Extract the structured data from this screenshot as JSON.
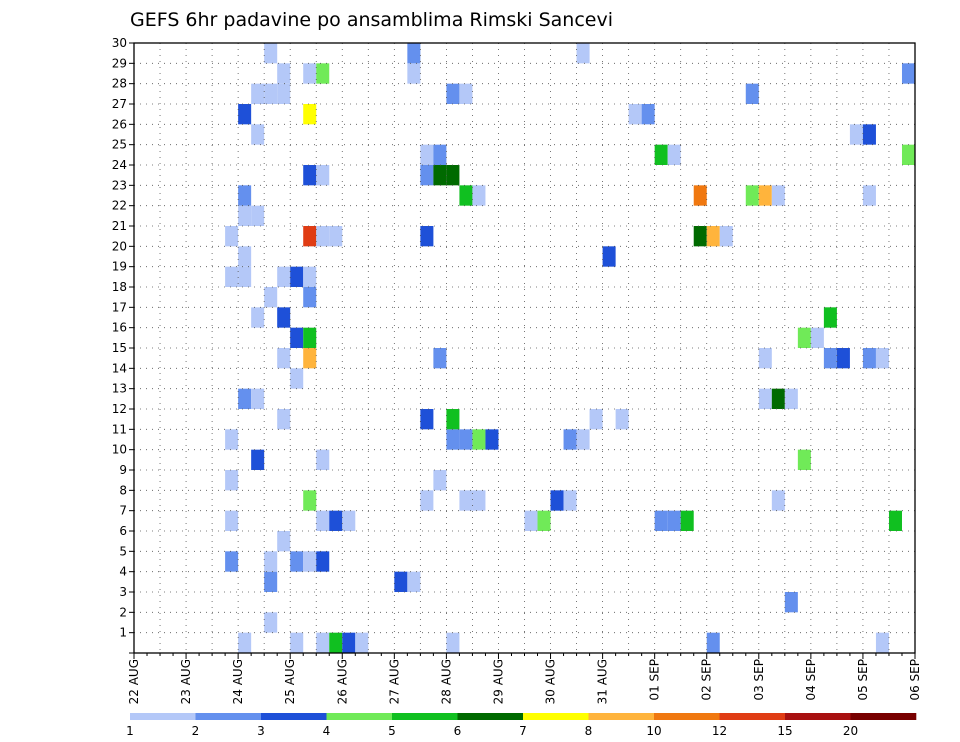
{
  "chart_data": {
    "type": "heatmap",
    "title": "GEFS 6hr padavine po ansamblima Rimski Sancevi",
    "xlabel": "",
    "ylabel": "",
    "x_ticks": [
      "22 AUG",
      "23 AUG",
      "24 AUG",
      "25 AUG",
      "26 AUG",
      "27 AUG",
      "28 AUG",
      "29 AUG",
      "30 AUG",
      "31 AUG",
      "01 SEP",
      "02 SEP",
      "03 SEP",
      "04 SEP",
      "05 SEP",
      "06 SEP"
    ],
    "y_ticks": [
      1,
      2,
      3,
      4,
      5,
      6,
      7,
      8,
      9,
      10,
      11,
      12,
      13,
      14,
      15,
      16,
      17,
      18,
      19,
      20,
      21,
      22,
      23,
      24,
      25,
      26,
      27,
      28,
      29,
      30
    ],
    "x_range_days": [
      0,
      15
    ],
    "y_range": [
      0,
      30
    ],
    "grid": "dotted",
    "colorbar": {
      "labels": [
        "1",
        "2",
        "3",
        "4",
        "5",
        "6",
        "7",
        "8",
        "10",
        "12",
        "15",
        "20"
      ],
      "colors": [
        "#b4c8f8",
        "#6490ee",
        "#1e50d8",
        "#70ea58",
        "#10c020",
        "#006a00",
        "#ffff00",
        "#ffb43c",
        "#f07810",
        "#e03c14",
        "#a81010",
        "#780000"
      ]
    },
    "cells": [
      {
        "d": 2.0,
        "m": 0,
        "v": 1.5
      },
      {
        "d": 3.0,
        "m": 0,
        "v": 1.5
      },
      {
        "d": 3.5,
        "m": 0,
        "v": 1.5
      },
      {
        "d": 3.75,
        "m": 0,
        "v": 5.5
      },
      {
        "d": 4.0,
        "m": 0,
        "v": 3.5
      },
      {
        "d": 4.25,
        "m": 0,
        "v": 1.5
      },
      {
        "d": 6.0,
        "m": 0,
        "v": 1.5
      },
      {
        "d": 11.0,
        "m": 0,
        "v": 2.5
      },
      {
        "d": 14.25,
        "m": 0,
        "v": 1.5
      },
      {
        "d": 2.5,
        "m": 1,
        "v": 1.5
      },
      {
        "d": 12.5,
        "m": 2,
        "v": 2.5
      },
      {
        "d": 2.5,
        "m": 3,
        "v": 2.5
      },
      {
        "d": 5.0,
        "m": 3,
        "v": 3.5
      },
      {
        "d": 5.25,
        "m": 3,
        "v": 1.5
      },
      {
        "d": 1.75,
        "m": 4,
        "v": 2.5
      },
      {
        "d": 2.5,
        "m": 4,
        "v": 1.5
      },
      {
        "d": 3.0,
        "m": 4,
        "v": 2.5
      },
      {
        "d": 3.25,
        "m": 4,
        "v": 1.5
      },
      {
        "d": 3.5,
        "m": 4,
        "v": 3.5
      },
      {
        "d": 2.75,
        "m": 5,
        "v": 1.5
      },
      {
        "d": 1.75,
        "m": 6,
        "v": 1.5
      },
      {
        "d": 3.5,
        "m": 6,
        "v": 1.5
      },
      {
        "d": 3.75,
        "m": 6,
        "v": 3.5
      },
      {
        "d": 4.0,
        "m": 6,
        "v": 1.5
      },
      {
        "d": 7.5,
        "m": 6,
        "v": 1.5
      },
      {
        "d": 7.75,
        "m": 6,
        "v": 4.5
      },
      {
        "d": 10.0,
        "m": 6,
        "v": 2.5
      },
      {
        "d": 10.25,
        "m": 6,
        "v": 2.5
      },
      {
        "d": 10.5,
        "m": 6,
        "v": 5.5
      },
      {
        "d": 14.5,
        "m": 6,
        "v": 5.5
      },
      {
        "d": 3.25,
        "m": 7,
        "v": 4.5
      },
      {
        "d": 5.5,
        "m": 7,
        "v": 1.5
      },
      {
        "d": 6.25,
        "m": 7,
        "v": 1.5
      },
      {
        "d": 6.5,
        "m": 7,
        "v": 1.5
      },
      {
        "d": 8.0,
        "m": 7,
        "v": 3.5
      },
      {
        "d": 8.25,
        "m": 7,
        "v": 1.5
      },
      {
        "d": 12.25,
        "m": 7,
        "v": 1.5
      },
      {
        "d": 1.75,
        "m": 8,
        "v": 1.5
      },
      {
        "d": 5.75,
        "m": 8,
        "v": 1.5
      },
      {
        "d": 2.25,
        "m": 9,
        "v": 3.5
      },
      {
        "d": 3.5,
        "m": 9,
        "v": 1.5
      },
      {
        "d": 12.75,
        "m": 9,
        "v": 4.5
      },
      {
        "d": 1.75,
        "m": 10,
        "v": 1.5
      },
      {
        "d": 6.0,
        "m": 10,
        "v": 2.5
      },
      {
        "d": 6.25,
        "m": 10,
        "v": 2.5
      },
      {
        "d": 6.5,
        "m": 10,
        "v": 4.5
      },
      {
        "d": 6.75,
        "m": 10,
        "v": 3.5
      },
      {
        "d": 8.25,
        "m": 10,
        "v": 2.5
      },
      {
        "d": 8.5,
        "m": 10,
        "v": 1.5
      },
      {
        "d": 2.75,
        "m": 11,
        "v": 1.5
      },
      {
        "d": 5.5,
        "m": 11,
        "v": 3.5
      },
      {
        "d": 6.0,
        "m": 11,
        "v": 5.5
      },
      {
        "d": 8.75,
        "m": 11,
        "v": 1.5
      },
      {
        "d": 9.25,
        "m": 11,
        "v": 1.5
      },
      {
        "d": 2.0,
        "m": 12,
        "v": 2.5
      },
      {
        "d": 2.25,
        "m": 12,
        "v": 1.5
      },
      {
        "d": 12.0,
        "m": 12,
        "v": 1.5
      },
      {
        "d": 12.25,
        "m": 12,
        "v": 6.5
      },
      {
        "d": 12.5,
        "m": 12,
        "v": 1.5
      },
      {
        "d": 3.0,
        "m": 13,
        "v": 1.5
      },
      {
        "d": 2.75,
        "m": 14,
        "v": 1.5
      },
      {
        "d": 3.25,
        "m": 14,
        "v": 9.0
      },
      {
        "d": 5.75,
        "m": 14,
        "v": 2.5
      },
      {
        "d": 12.0,
        "m": 14,
        "v": 1.5
      },
      {
        "d": 13.25,
        "m": 14,
        "v": 2.5
      },
      {
        "d": 13.5,
        "m": 14,
        "v": 3.5
      },
      {
        "d": 14.0,
        "m": 14,
        "v": 2.5
      },
      {
        "d": 14.25,
        "m": 14,
        "v": 1.5
      },
      {
        "d": 3.0,
        "m": 15,
        "v": 3.5
      },
      {
        "d": 3.25,
        "m": 15,
        "v": 5.5
      },
      {
        "d": 12.75,
        "m": 15,
        "v": 4.5
      },
      {
        "d": 13.0,
        "m": 15,
        "v": 1.5
      },
      {
        "d": 2.25,
        "m": 16,
        "v": 1.5
      },
      {
        "d": 2.75,
        "m": 16,
        "v": 3.5
      },
      {
        "d": 13.25,
        "m": 16,
        "v": 5.5
      },
      {
        "d": 2.5,
        "m": 17,
        "v": 1.5
      },
      {
        "d": 3.25,
        "m": 17,
        "v": 2.5
      },
      {
        "d": 1.75,
        "m": 18,
        "v": 1.5
      },
      {
        "d": 2.0,
        "m": 18,
        "v": 1.5
      },
      {
        "d": 2.75,
        "m": 18,
        "v": 1.5
      },
      {
        "d": 3.0,
        "m": 18,
        "v": 3.5
      },
      {
        "d": 3.25,
        "m": 18,
        "v": 1.5
      },
      {
        "d": 2.0,
        "m": 19,
        "v": 1.5
      },
      {
        "d": 9.0,
        "m": 19,
        "v": 3.5
      },
      {
        "d": 1.75,
        "m": 20,
        "v": 1.5
      },
      {
        "d": 3.25,
        "m": 20,
        "v": 14.0
      },
      {
        "d": 3.5,
        "m": 20,
        "v": 1.5
      },
      {
        "d": 3.75,
        "m": 20,
        "v": 1.5
      },
      {
        "d": 5.5,
        "m": 20,
        "v": 3.5
      },
      {
        "d": 10.75,
        "m": 20,
        "v": 6.5
      },
      {
        "d": 11.0,
        "m": 20,
        "v": 9.0
      },
      {
        "d": 11.25,
        "m": 20,
        "v": 1.5
      },
      {
        "d": 2.0,
        "m": 21,
        "v": 1.5
      },
      {
        "d": 2.25,
        "m": 21,
        "v": 1.5
      },
      {
        "d": 2.0,
        "m": 22,
        "v": 2.5
      },
      {
        "d": 6.25,
        "m": 22,
        "v": 5.5
      },
      {
        "d": 6.5,
        "m": 22,
        "v": 1.5
      },
      {
        "d": 10.75,
        "m": 22,
        "v": 11.0
      },
      {
        "d": 11.75,
        "m": 22,
        "v": 4.5
      },
      {
        "d": 12.0,
        "m": 22,
        "v": 9.0
      },
      {
        "d": 12.25,
        "m": 22,
        "v": 1.5
      },
      {
        "d": 14.0,
        "m": 22,
        "v": 1.5
      },
      {
        "d": 3.25,
        "m": 23,
        "v": 3.5
      },
      {
        "d": 3.5,
        "m": 23,
        "v": 1.5
      },
      {
        "d": 5.5,
        "m": 23,
        "v": 2.5
      },
      {
        "d": 5.75,
        "m": 23,
        "v": 6.5
      },
      {
        "d": 6.0,
        "m": 23,
        "v": 6.5
      },
      {
        "d": 5.5,
        "m": 24,
        "v": 1.5
      },
      {
        "d": 5.75,
        "m": 24,
        "v": 2.5
      },
      {
        "d": 10.0,
        "m": 24,
        "v": 5.5
      },
      {
        "d": 10.25,
        "m": 24,
        "v": 1.5
      },
      {
        "d": 14.75,
        "m": 24,
        "v": 4.5
      },
      {
        "d": 2.25,
        "m": 25,
        "v": 1.5
      },
      {
        "d": 13.75,
        "m": 25,
        "v": 1.5
      },
      {
        "d": 14.0,
        "m": 25,
        "v": 3.5
      },
      {
        "d": 2.0,
        "m": 26,
        "v": 3.5
      },
      {
        "d": 3.25,
        "m": 26,
        "v": 7.5
      },
      {
        "d": 9.5,
        "m": 26,
        "v": 1.5
      },
      {
        "d": 9.75,
        "m": 26,
        "v": 2.5
      },
      {
        "d": 2.25,
        "m": 27,
        "v": 1.5
      },
      {
        "d": 2.5,
        "m": 27,
        "v": 1.5
      },
      {
        "d": 2.75,
        "m": 27,
        "v": 1.5
      },
      {
        "d": 6.0,
        "m": 27,
        "v": 2.5
      },
      {
        "d": 6.25,
        "m": 27,
        "v": 1.5
      },
      {
        "d": 11.75,
        "m": 27,
        "v": 2.5
      },
      {
        "d": 2.75,
        "m": 28,
        "v": 1.5
      },
      {
        "d": 3.25,
        "m": 28,
        "v": 1.5
      },
      {
        "d": 3.5,
        "m": 28,
        "v": 4.5
      },
      {
        "d": 5.25,
        "m": 28,
        "v": 1.5
      },
      {
        "d": 14.75,
        "m": 28,
        "v": 2.5
      },
      {
        "d": 2.5,
        "m": 29,
        "v": 1.5
      },
      {
        "d": 5.25,
        "m": 29,
        "v": 2.5
      },
      {
        "d": 8.5,
        "m": 29,
        "v": 1.5
      }
    ]
  }
}
